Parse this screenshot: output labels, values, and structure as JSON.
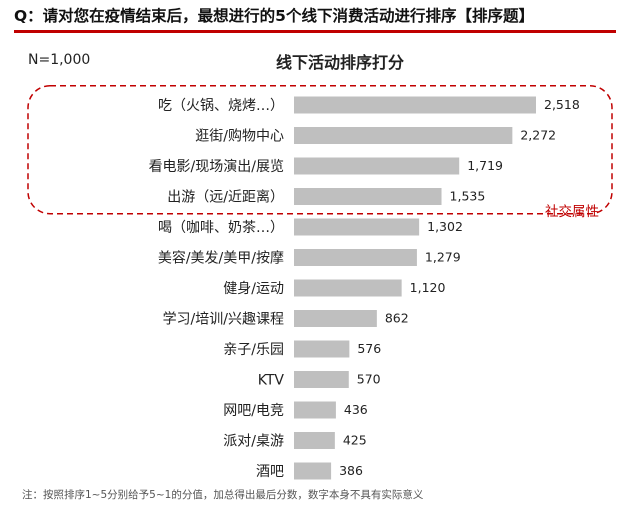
{
  "header": {
    "question": "Q：请对您在疫情结束后，最想进行的5个线下消费活动进行排序【排序题】"
  },
  "sample_size": "N=1,000",
  "annotation": {
    "group_label": "社交属性",
    "accent_color": "#c00000"
  },
  "footnote": "注：按照排序1~5分别给予5~1的分值，加总得出最后分数，数字本身不具有实际意义",
  "chart_data": {
    "type": "bar",
    "orientation": "horizontal",
    "title": "线下活动排序打分",
    "bar_color": "#bfbfbf",
    "grid": false,
    "categories": [
      "吃（火锅、烧烤…）",
      "逛街/购物中心",
      "看电影/现场演出/展览",
      "出游（远/近距离）",
      "喝（咖啡、奶茶…）",
      "美容/美发/美甲/按摩",
      "健身/运动",
      "学习/培训/兴趣课程",
      "亲子/乐园",
      "KTV",
      "网吧/电竞",
      "派对/桌游",
      "酒吧"
    ],
    "values": [
      2518,
      2272,
      1719,
      1535,
      1302,
      1279,
      1120,
      862,
      576,
      570,
      436,
      425,
      386
    ],
    "value_labels": [
      "2,518",
      "2,272",
      "1,719",
      "1,535",
      "1,302",
      "1,279",
      "1,120",
      "862",
      "576",
      "570",
      "436",
      "425",
      "386"
    ],
    "highlighted_categories": [
      "吃（火锅、烧烤…）",
      "逛街/购物中心",
      "看电影/现场演出/展览",
      "出游（远/近距离）"
    ]
  }
}
